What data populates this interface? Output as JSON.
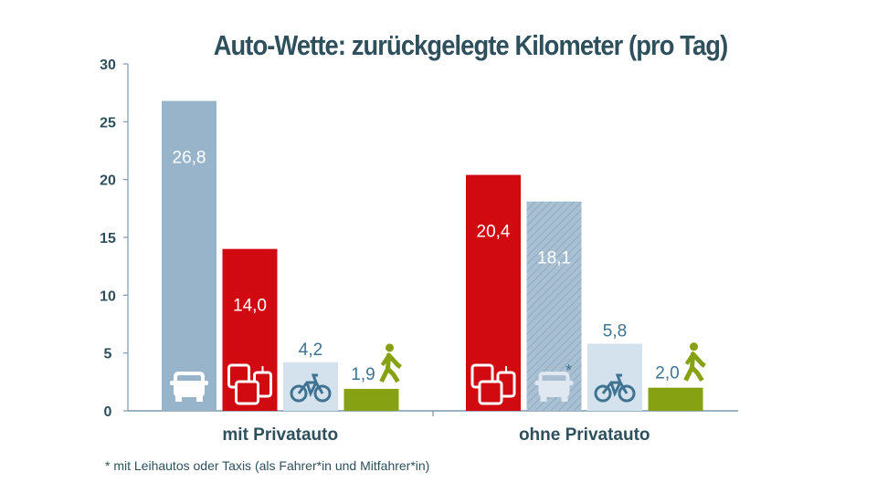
{
  "chart_data": {
    "type": "bar",
    "title": "Auto-Wette: zurückgelegte Kilometer (pro Tag)",
    "xlabel": "",
    "ylabel": "",
    "ylim": [
      0,
      30
    ],
    "yticks": [
      "0",
      "5",
      "10",
      "15",
      "20",
      "25",
      "30"
    ],
    "grid": false,
    "categories": [
      "mit Privatauto",
      "ohne Privatauto"
    ],
    "groups": [
      {
        "category": "mit Privatauto",
        "bars": [
          {
            "mode": "car",
            "value": 26.8,
            "label": "26,8",
            "icon": "car-icon",
            "color": "#98b4cb"
          },
          {
            "mode": "public-transport",
            "value": 14.0,
            "label": "14,0",
            "icon": "bus-tram-icon",
            "color": "#d10a11"
          },
          {
            "mode": "bike",
            "value": 4.2,
            "label": "4,2",
            "icon": "bicycle-icon",
            "color": "#d3e2ec"
          },
          {
            "mode": "walk",
            "value": 1.9,
            "label": "1,9",
            "icon": "pedestrian-icon",
            "color": "#86a213"
          }
        ]
      },
      {
        "category": "ohne Privatauto",
        "bars": [
          {
            "mode": "public-transport",
            "value": 20.4,
            "label": "20,4",
            "icon": "bus-tram-icon",
            "color": "#d10a11"
          },
          {
            "mode": "car-sharing-taxi",
            "value": 18.1,
            "label": "18,1",
            "icon": "car-icon",
            "color": "#98b4cb",
            "hatched": true,
            "marker": "*"
          },
          {
            "mode": "bike",
            "value": 5.8,
            "label": "5,8",
            "icon": "bicycle-icon",
            "color": "#d3e2ec"
          },
          {
            "mode": "walk",
            "value": 2.0,
            "label": "2,0",
            "icon": "pedestrian-icon",
            "color": "#86a213"
          }
        ]
      }
    ],
    "footnote": "*   mit Leihautos oder Taxis (als Fahrer*in und Mitfahrer*in)"
  }
}
